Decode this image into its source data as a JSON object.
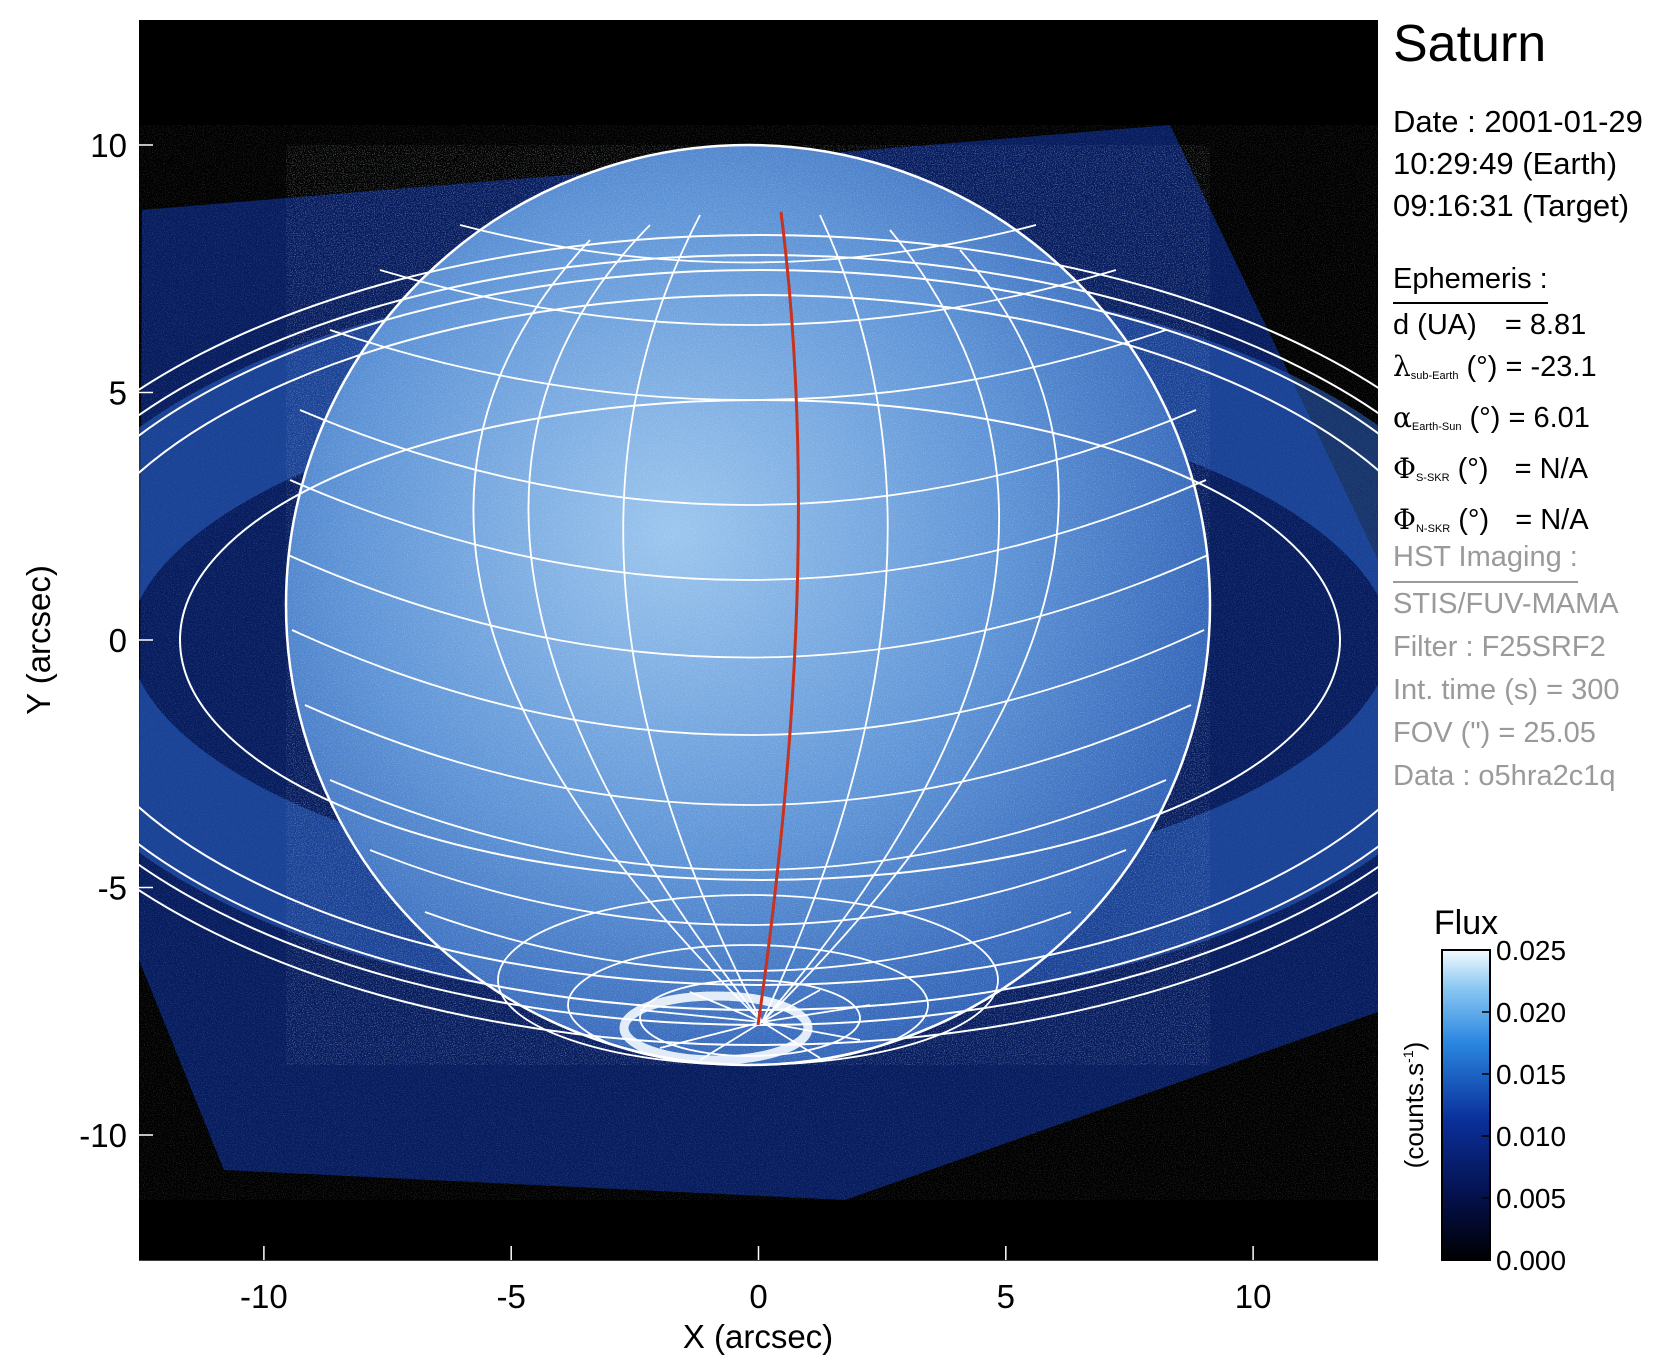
{
  "title": "Saturn",
  "observation": {
    "date": "Date : 2001-01-29",
    "time_earth": "10:29:49 (Earth)",
    "time_target": "09:16:31 (Target)"
  },
  "ephemeris": {
    "heading": "Ephemeris :",
    "rows": [
      {
        "symbol": "",
        "label": "d (UA)",
        "sub": "",
        "tail": "",
        "value": "= 8.81"
      },
      {
        "symbol": "λ",
        "label": "",
        "sub": "sub-Earth",
        "tail": " (°)",
        "value": "= -23.1"
      },
      {
        "symbol": "α",
        "label": "",
        "sub": "Earth-Sun",
        "tail": " (°)",
        "value": "= 6.01"
      },
      {
        "symbol": "Φ",
        "label": "",
        "sub": "S-SKR",
        "tail": " (°)",
        "value": "= N/A"
      },
      {
        "symbol": "Φ",
        "label": "",
        "sub": "N-SKR",
        "tail": " (°)",
        "value": "= N/A"
      }
    ]
  },
  "imaging": {
    "heading": "HST Imaging :",
    "instrument": "STIS/FUV-MAMA",
    "filter": "Filter : F25SRF2",
    "int_time": "Int. time (s) = 300",
    "fov": "FOV (\") = 25.05",
    "data": "Data : o5hra2c1q"
  },
  "axes": {
    "xlabel": "X (arcsec)",
    "ylabel": "Y (arcsec)",
    "xlim": [
      -12.525,
      12.525
    ],
    "ylim": [
      -12.525,
      12.525
    ],
    "xticks": [
      -10,
      -5,
      0,
      5,
      10
    ],
    "yticks": [
      -10,
      -5,
      0,
      5,
      10
    ]
  },
  "colorbar": {
    "title": "Flux",
    "unit_label": "(counts.s",
    "unit_sup": "-1",
    "unit_close": ")",
    "ticks": [
      "0.000",
      "0.005",
      "0.010",
      "0.015",
      "0.020",
      "0.025"
    ],
    "range": [
      0.0,
      0.025
    ]
  },
  "colors": {
    "background": "#000000",
    "sky": "#061c5e",
    "disk_bright": "#a9cff2",
    "grid": "#ffffff",
    "meridian": "#c8321e"
  }
}
